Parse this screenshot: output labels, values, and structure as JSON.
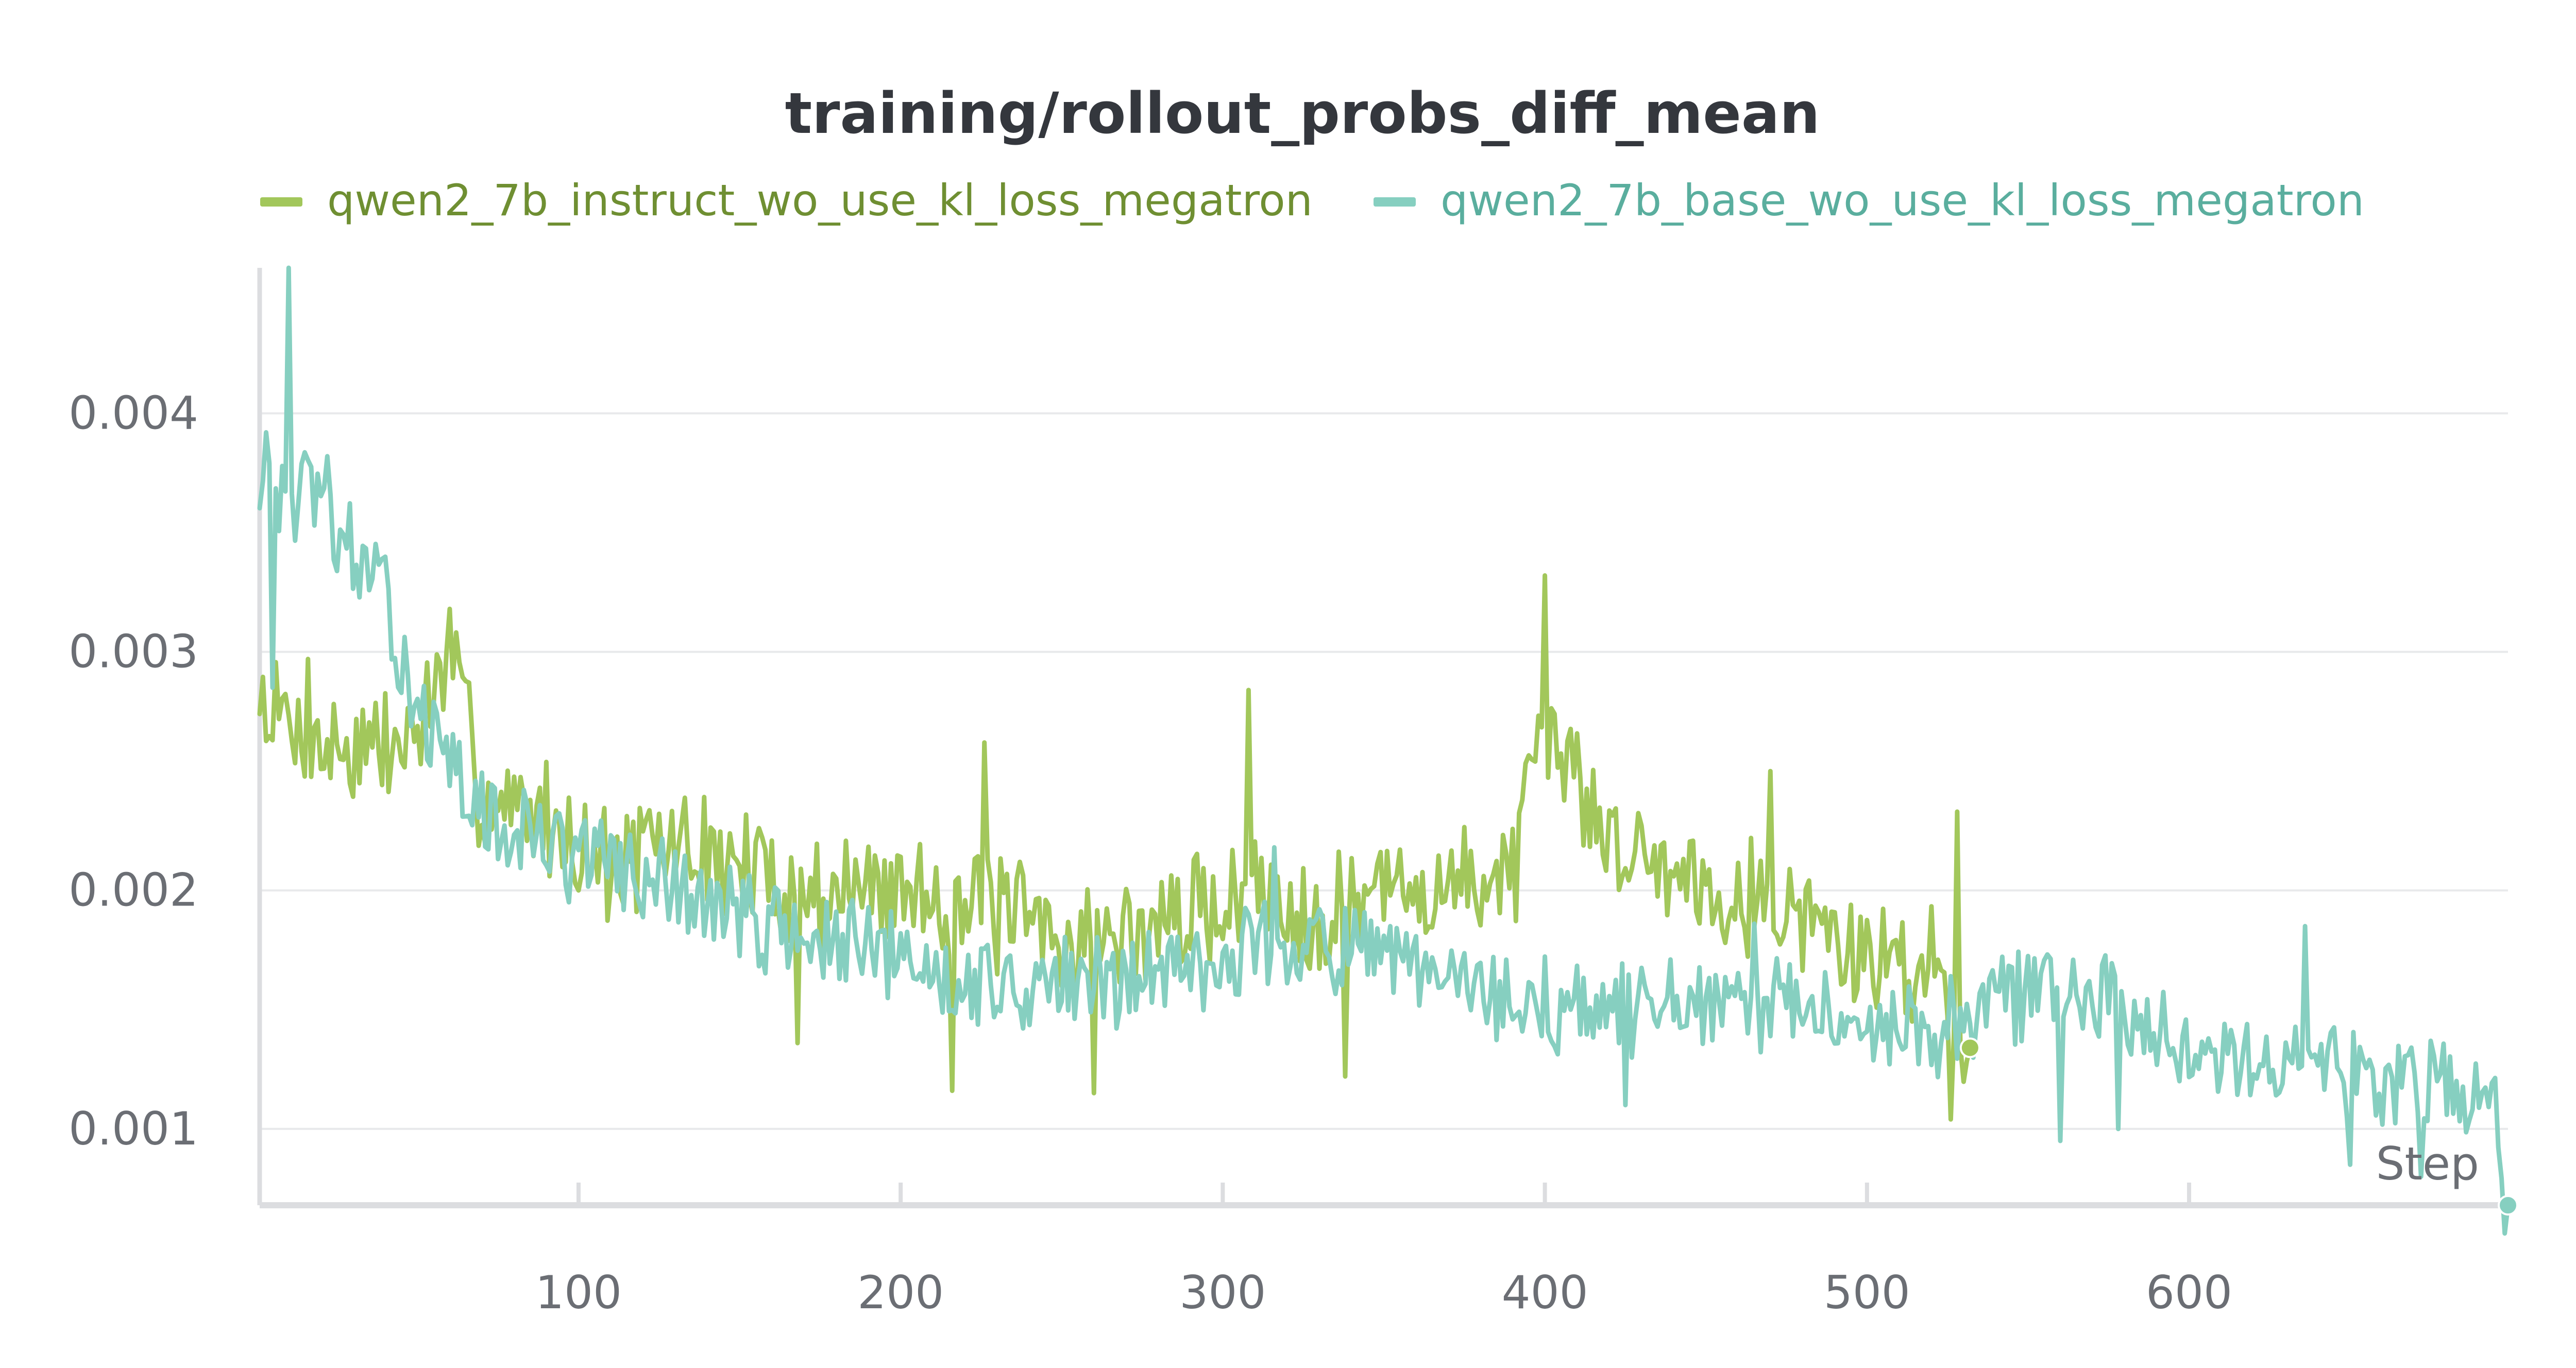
{
  "chart_data": {
    "type": "line",
    "title": "training/rollout_probs_diff_mean",
    "xlabel": "Step",
    "ylabel": "",
    "xlim": [
      1,
      699
    ],
    "ylim": [
      0.00068,
      0.00461
    ],
    "x_ticks": [
      100,
      200,
      300,
      400,
      500,
      600
    ],
    "y_ticks": [
      0.001,
      0.002,
      0.003,
      0.004
    ],
    "x_tick_labels": [
      "100",
      "200",
      "300",
      "400",
      "500",
      "600"
    ],
    "y_tick_labels": [
      "0.001",
      "0.002",
      "0.003",
      "0.004"
    ],
    "grid": true,
    "legend_position": "top",
    "series": [
      {
        "name": "qwen2_7b_instruct_wo_use_kl_loss_megatron",
        "color": "#a2c75b",
        "legend_text_color": "#6f8f32",
        "x_start": 1,
        "x_end": 532,
        "anchors": [
          [
            1,
            0.0028
          ],
          [
            10,
            0.0027
          ],
          [
            20,
            0.0026
          ],
          [
            30,
            0.0026
          ],
          [
            45,
            0.0026
          ],
          [
            55,
            0.0028
          ],
          [
            60,
            0.003
          ],
          [
            70,
            0.0024
          ],
          [
            90,
            0.0023
          ],
          [
            110,
            0.0021
          ],
          [
            130,
            0.0022
          ],
          [
            150,
            0.0021
          ],
          [
            170,
            0.002
          ],
          [
            190,
            0.002
          ],
          [
            210,
            0.002
          ],
          [
            230,
            0.0019
          ],
          [
            250,
            0.0018
          ],
          [
            270,
            0.0018
          ],
          [
            290,
            0.0019
          ],
          [
            310,
            0.002
          ],
          [
            330,
            0.0019
          ],
          [
            350,
            0.002
          ],
          [
            370,
            0.002
          ],
          [
            390,
            0.0021
          ],
          [
            400,
            0.0026
          ],
          [
            410,
            0.0025
          ],
          [
            420,
            0.0022
          ],
          [
            440,
            0.0021
          ],
          [
            460,
            0.002
          ],
          [
            480,
            0.0019
          ],
          [
            500,
            0.0017
          ],
          [
            520,
            0.0017
          ],
          [
            532,
            0.00134
          ]
        ],
        "amplitude": 0.00022,
        "seed": 7,
        "spikes": [
          [
            400,
            0.00332
          ],
          [
            60,
            0.00318
          ],
          [
            308,
            0.00284
          ],
          [
            16,
            0.00297
          ],
          [
            226,
            0.00262
          ],
          [
            470,
            0.0025
          ],
          [
            528,
            0.00233
          ]
        ],
        "dips": [
          [
            260,
            0.00115
          ],
          [
            338,
            0.00122
          ],
          [
            526,
            0.00104
          ],
          [
            216,
            0.00116
          ],
          [
            168,
            0.00136
          ]
        ]
      },
      {
        "name": "qwen2_7b_base_wo_use_kl_loss_megatron",
        "color": "#86cfc0",
        "legend_text_color": "#5aae9e",
        "x_start": 1,
        "x_end": 699,
        "anchors": [
          [
            1,
            0.0037
          ],
          [
            5,
            0.0036
          ],
          [
            10,
            0.0036
          ],
          [
            15,
            0.0037
          ],
          [
            20,
            0.0036
          ],
          [
            25,
            0.0035
          ],
          [
            30,
            0.0034
          ],
          [
            40,
            0.0032
          ],
          [
            50,
            0.0028
          ],
          [
            60,
            0.0025
          ],
          [
            70,
            0.0023
          ],
          [
            90,
            0.0022
          ],
          [
            110,
            0.0021
          ],
          [
            130,
            0.002
          ],
          [
            150,
            0.0019
          ],
          [
            170,
            0.0018
          ],
          [
            200,
            0.0017
          ],
          [
            230,
            0.0016
          ],
          [
            260,
            0.0016
          ],
          [
            290,
            0.0017
          ],
          [
            320,
            0.0018
          ],
          [
            350,
            0.0017
          ],
          [
            370,
            0.0016
          ],
          [
            400,
            0.0015
          ],
          [
            430,
            0.0015
          ],
          [
            460,
            0.0015
          ],
          [
            490,
            0.0015
          ],
          [
            520,
            0.0014
          ],
          [
            550,
            0.0016
          ],
          [
            580,
            0.0015
          ],
          [
            600,
            0.0014
          ],
          [
            620,
            0.0013
          ],
          [
            640,
            0.0013
          ],
          [
            660,
            0.0012
          ],
          [
            680,
            0.0012
          ],
          [
            695,
            0.0011
          ],
          [
            699,
            0.00068
          ]
        ],
        "amplitude": 0.00018,
        "seed": 13,
        "spikes": [
          [
            10,
            0.00468
          ],
          [
            3,
            0.00392
          ],
          [
            22,
            0.00382
          ],
          [
            560,
            0.00205
          ],
          [
            316,
            0.00218
          ],
          [
            465,
            0.00186
          ],
          [
            636,
            0.00185
          ]
        ],
        "dips": [
          [
            5,
            0.00285
          ],
          [
            560,
            0.00095
          ],
          [
            578,
            0.001
          ],
          [
            650,
            0.00085
          ],
          [
            672,
            0.0008
          ],
          [
            425,
            0.0011
          ]
        ]
      }
    ],
    "end_markers": [
      {
        "series": 0,
        "x": 532,
        "y": 0.00134
      },
      {
        "series": 1,
        "x": 699,
        "y": 0.00068
      }
    ]
  }
}
